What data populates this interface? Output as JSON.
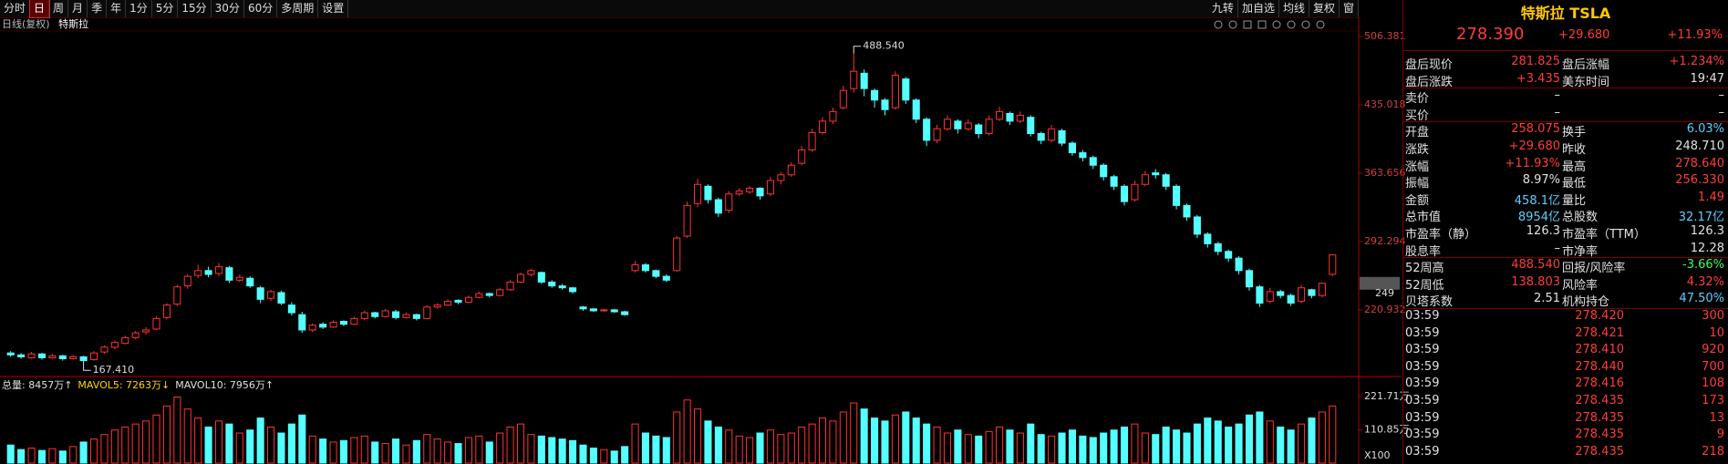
{
  "toolbar": {
    "left": [
      "分时",
      "日",
      "周",
      "月",
      "季",
      "年",
      "1分",
      "5分",
      "15分",
      "30分",
      "60分",
      "多周期",
      "设置"
    ],
    "active": "日",
    "right": [
      "九转",
      "加自选",
      "均线",
      "复权",
      "窗"
    ]
  },
  "subheader": {
    "period": "日线(复权)",
    "name": "特斯拉"
  },
  "chart_data": [
    {
      "type": "candlestick",
      "up_color": "#ff3232",
      "down_color": "#54ffff",
      "ylim": [
        152.4,
        517.8
      ],
      "yticks": [
        506.381,
        435.018,
        363.656,
        292.294,
        220.932
      ],
      "max_label": {
        "value": 488.54,
        "label": "488.540"
      },
      "min_label": {
        "value": 167.41,
        "label": "167.410"
      },
      "price_tag": {
        "value": 248.71,
        "label": "249"
      },
      "candles": [
        [
          176,
          178,
          172,
          174
        ],
        [
          174,
          176,
          170,
          172
        ],
        [
          171,
          177,
          170,
          175
        ],
        [
          175,
          176,
          169,
          171
        ],
        [
          171,
          175,
          170,
          173
        ],
        [
          173,
          174,
          168,
          170
        ],
        [
          170,
          174,
          169,
          172
        ],
        [
          172,
          173,
          167.41,
          168
        ],
        [
          169,
          178,
          168,
          176
        ],
        [
          177,
          184,
          175,
          182
        ],
        [
          182,
          189,
          180,
          187
        ],
        [
          186,
          194,
          185,
          192
        ],
        [
          192,
          199,
          190,
          197
        ],
        [
          198,
          203,
          195,
          200
        ],
        [
          201,
          214,
          200,
          212
        ],
        [
          213,
          228,
          211,
          226
        ],
        [
          227,
          247,
          225,
          245
        ],
        [
          246,
          258,
          243,
          256
        ],
        [
          257,
          268,
          254,
          262
        ],
        [
          262,
          266,
          255,
          258
        ],
        [
          259,
          270,
          256,
          266
        ],
        [
          265,
          267,
          249,
          252
        ],
        [
          252,
          258,
          250,
          255
        ],
        [
          254,
          256,
          244,
          246
        ],
        [
          244,
          246,
          228,
          232
        ],
        [
          233,
          242,
          230,
          240
        ],
        [
          239,
          241,
          226,
          228
        ],
        [
          226,
          229,
          215,
          218
        ],
        [
          216,
          219,
          197,
          200
        ],
        [
          200,
          207,
          198,
          205
        ],
        [
          206,
          208,
          201,
          203
        ],
        [
          203,
          210,
          202,
          208
        ],
        [
          209,
          210,
          204,
          206
        ],
        [
          206,
          214,
          205,
          212
        ],
        [
          212,
          220,
          210,
          218
        ],
        [
          218,
          219,
          212,
          214
        ],
        [
          214,
          222,
          213,
          220
        ],
        [
          219,
          221,
          211,
          213
        ],
        [
          213,
          218,
          212,
          216
        ],
        [
          216,
          217,
          210,
          212
        ],
        [
          212,
          226,
          211,
          224
        ],
        [
          224,
          228,
          222,
          226
        ],
        [
          226,
          232,
          225,
          230
        ],
        [
          231,
          232,
          227,
          229
        ],
        [
          229,
          236,
          228,
          234
        ],
        [
          234,
          240,
          233,
          238
        ],
        [
          238,
          239,
          234,
          236
        ],
        [
          236,
          244,
          235,
          242
        ],
        [
          242,
          252,
          241,
          250
        ],
        [
          250,
          260,
          249,
          258
        ],
        [
          258,
          264,
          256,
          262
        ],
        [
          260,
          261,
          248,
          250
        ],
        [
          250,
          252,
          244,
          246
        ],
        [
          246,
          248,
          242,
          244
        ],
        [
          244,
          245,
          238,
          240
        ],
        [
          224,
          225,
          220,
          222
        ],
        [
          222,
          223,
          219,
          220
        ],
        [
          220,
          222,
          219,
          221
        ],
        [
          221,
          222,
          218,
          219
        ],
        [
          219,
          220,
          215,
          216
        ],
        [
          262,
          272,
          260,
          268
        ],
        [
          268,
          270,
          260,
          262
        ],
        [
          262,
          263,
          254,
          256
        ],
        [
          256,
          258,
          250,
          252
        ],
        [
          262,
          298,
          261,
          296
        ],
        [
          298,
          334,
          296,
          330
        ],
        [
          332,
          358,
          328,
          352
        ],
        [
          350,
          352,
          332,
          336
        ],
        [
          336,
          338,
          318,
          322
        ],
        [
          325,
          345,
          322,
          342
        ],
        [
          342,
          348,
          340,
          345
        ],
        [
          344,
          350,
          342,
          348
        ],
        [
          348,
          349,
          336,
          340
        ],
        [
          342,
          360,
          340,
          356
        ],
        [
          356,
          365,
          352,
          362
        ],
        [
          362,
          375,
          360,
          372
        ],
        [
          374,
          392,
          372,
          388
        ],
        [
          388,
          410,
          386,
          406
        ],
        [
          406,
          422,
          404,
          418
        ],
        [
          418,
          432,
          415,
          428
        ],
        [
          432,
          455,
          430,
          450
        ],
        [
          452,
          488.54,
          448,
          470
        ],
        [
          468,
          472,
          444,
          452
        ],
        [
          450,
          452,
          432,
          440
        ],
        [
          440,
          442,
          424,
          430
        ],
        [
          432,
          470,
          430,
          466
        ],
        [
          462,
          464,
          436,
          440
        ],
        [
          440,
          442,
          416,
          420
        ],
        [
          420,
          422,
          392,
          398
        ],
        [
          398,
          414,
          395,
          410
        ],
        [
          410,
          424,
          408,
          420
        ],
        [
          418,
          420,
          405,
          410
        ],
        [
          410,
          420,
          408,
          416
        ],
        [
          414,
          416,
          400,
          405
        ],
        [
          405,
          424,
          403,
          420
        ],
        [
          420,
          433,
          418,
          428
        ],
        [
          426,
          428,
          414,
          418
        ],
        [
          418,
          428,
          416,
          424
        ],
        [
          422,
          424,
          402,
          405
        ],
        [
          405,
          407,
          394,
          398
        ],
        [
          398,
          414,
          396,
          410
        ],
        [
          408,
          410,
          392,
          395
        ],
        [
          395,
          397,
          382,
          385
        ],
        [
          385,
          388,
          376,
          380
        ],
        [
          380,
          382,
          368,
          372
        ],
        [
          372,
          374,
          356,
          360
        ],
        [
          360,
          362,
          346,
          350
        ],
        [
          350,
          352,
          330,
          334
        ],
        [
          336,
          356,
          334,
          352
        ],
        [
          352,
          366,
          350,
          362
        ],
        [
          364,
          368,
          358,
          362
        ],
        [
          362,
          364,
          346,
          350
        ],
        [
          350,
          352,
          326,
          330
        ],
        [
          330,
          332,
          314,
          318
        ],
        [
          318,
          320,
          296,
          300
        ],
        [
          300,
          302,
          286,
          290
        ],
        [
          290,
          292,
          278,
          282
        ],
        [
          282,
          284,
          271,
          275
        ],
        [
          275,
          277,
          258,
          262
        ],
        [
          262,
          264,
          241,
          245
        ],
        [
          245,
          247,
          224,
          228
        ],
        [
          230,
          244,
          228,
          240
        ],
        [
          240,
          242,
          233,
          236
        ],
        [
          236,
          238,
          225,
          228
        ],
        [
          230,
          247,
          228,
          244
        ],
        [
          242,
          243,
          233,
          236
        ],
        [
          236,
          250,
          234,
          248.71
        ],
        [
          258.075,
          278.64,
          256.33,
          278.39
        ]
      ]
    },
    {
      "type": "bar",
      "indicators": [
        "总量: 8457万↑",
        "MAVOL5: 7263万↓",
        "MAVOL10: 7956万↑"
      ],
      "indicator_colors": [
        "#e0e0e0",
        "#ffd700",
        "#e0e0e0"
      ],
      "ylim": [
        0,
        273
      ],
      "yticks": [
        {
          "value": 221.71,
          "label": "221.71万"
        },
        {
          "value": 110.85,
          "label": "110.85万"
        }
      ],
      "unit_label": "X100",
      "values": [
        60,
        45,
        50,
        42,
        48,
        40,
        55,
        70,
        80,
        95,
        110,
        120,
        130,
        140,
        160,
        190,
        220,
        180,
        150,
        120,
        140,
        130,
        100,
        110,
        150,
        120,
        100,
        130,
        160,
        90,
        80,
        70,
        75,
        85,
        90,
        70,
        65,
        80,
        60,
        75,
        95,
        80,
        70,
        65,
        85,
        90,
        70,
        100,
        120,
        130,
        95,
        90,
        85,
        80,
        75,
        60,
        50,
        45,
        40,
        55,
        130,
        100,
        90,
        85,
        170,
        210,
        180,
        140,
        120,
        110,
        90,
        85,
        100,
        110,
        95,
        100,
        120,
        130,
        150,
        140,
        170,
        200,
        180,
        150,
        140,
        160,
        170,
        150,
        130,
        120,
        100,
        110,
        95,
        90,
        105,
        120,
        110,
        100,
        130,
        95,
        90,
        100,
        110,
        90,
        85,
        100,
        110,
        120,
        130,
        100,
        95,
        120,
        110,
        100,
        130,
        150,
        140,
        120,
        130,
        160,
        170,
        140,
        120,
        110,
        130,
        150,
        170,
        190
      ]
    }
  ],
  "quote": {
    "title": "特斯拉 TSLA",
    "price": "278.390",
    "change": "+29.680",
    "change_pct": "+11.93%",
    "sections": [
      [
        {
          "cells": [
            "盘后现价",
            "281.825",
            "盘后涨幅",
            "+1.234%"
          ],
          "colors": [
            "#e0e0e0",
            "#ff3c3c",
            "#e0e0e0",
            "#ff3c3c"
          ]
        },
        {
          "cells": [
            "盘后涨跌",
            "+3.435",
            "美东时间",
            "19:47"
          ],
          "colors": [
            "#e0e0e0",
            "#ff3c3c",
            "#e0e0e0",
            "#e0e0e0"
          ]
        }
      ],
      [
        {
          "cells": [
            "卖价",
            "–",
            "–"
          ],
          "colors": [
            "#e0e0e0",
            "#e0e0e0",
            "#e0e0e0"
          ]
        },
        {
          "cells": [
            "买价",
            "–",
            "–"
          ],
          "colors": [
            "#e0e0e0",
            "#e0e0e0",
            "#e0e0e0"
          ]
        }
      ],
      [
        {
          "cells": [
            "开盘",
            "258.075",
            "换手",
            "6.03%"
          ],
          "colors": [
            "#e0e0e0",
            "#ff3c3c",
            "#e0e0e0",
            "#5ccfff"
          ]
        },
        {
          "cells": [
            "涨跌",
            "+29.680",
            "昨收",
            "248.710"
          ],
          "colors": [
            "#e0e0e0",
            "#ff3c3c",
            "#e0e0e0",
            "#e0e0e0"
          ]
        },
        {
          "cells": [
            "涨幅",
            "+11.93%",
            "最高",
            "278.640"
          ],
          "colors": [
            "#e0e0e0",
            "#ff3c3c",
            "#e0e0e0",
            "#ff3c3c"
          ]
        },
        {
          "cells": [
            "振幅",
            "8.97%",
            "最低",
            "256.330"
          ],
          "colors": [
            "#e0e0e0",
            "#e0e0e0",
            "#e0e0e0",
            "#ff3c3c"
          ]
        },
        {
          "cells": [
            "金额",
            "458.1亿",
            "量比",
            "1.49"
          ],
          "colors": [
            "#e0e0e0",
            "#5ccfff",
            "#e0e0e0",
            "#ff3c3c"
          ]
        },
        {
          "cells": [
            "总市值",
            "8954亿",
            "总股数",
            "32.17亿"
          ],
          "colors": [
            "#e0e0e0",
            "#5ccfff",
            "#e0e0e0",
            "#5ccfff"
          ]
        },
        {
          "cells": [
            "市盈率（静）",
            "126.3",
            "市盈率（TTM）",
            "126.3"
          ],
          "colors": [
            "#e0e0e0",
            "#e0e0e0",
            "#e0e0e0",
            "#e0e0e0"
          ]
        },
        {
          "cells": [
            "股息率",
            "–",
            "市净率",
            "12.28"
          ],
          "colors": [
            "#e0e0e0",
            "#e0e0e0",
            "#e0e0e0",
            "#e0e0e0"
          ]
        }
      ],
      [
        {
          "cells": [
            "52周高",
            "488.540",
            "回报/风险率",
            "-3.66%"
          ],
          "colors": [
            "#e0e0e0",
            "#ff3c3c",
            "#e0e0e0",
            "#3cff5a"
          ]
        },
        {
          "cells": [
            "52周低",
            "138.803",
            "风险率",
            "4.32%"
          ],
          "colors": [
            "#e0e0e0",
            "#ff3c3c",
            "#e0e0e0",
            "#ff3c3c"
          ]
        },
        {
          "cells": [
            "贝塔系数",
            "2.51",
            "机构持仓",
            "47.50%"
          ],
          "colors": [
            "#e0e0e0",
            "#e0e0e0",
            "#e0e0e0",
            "#5ccfff"
          ]
        }
      ]
    ],
    "trades": [
      [
        "03:59",
        "278.420",
        "300"
      ],
      [
        "03:59",
        "278.421",
        "10"
      ],
      [
        "03:59",
        "278.410",
        "920"
      ],
      [
        "03:59",
        "278.440",
        "700"
      ],
      [
        "03:59",
        "278.416",
        "108"
      ],
      [
        "03:59",
        "278.435",
        "173"
      ],
      [
        "03:59",
        "278.435",
        "13"
      ],
      [
        "03:59",
        "278.435",
        "9"
      ],
      [
        "03:59",
        "278.435",
        "218"
      ]
    ]
  }
}
